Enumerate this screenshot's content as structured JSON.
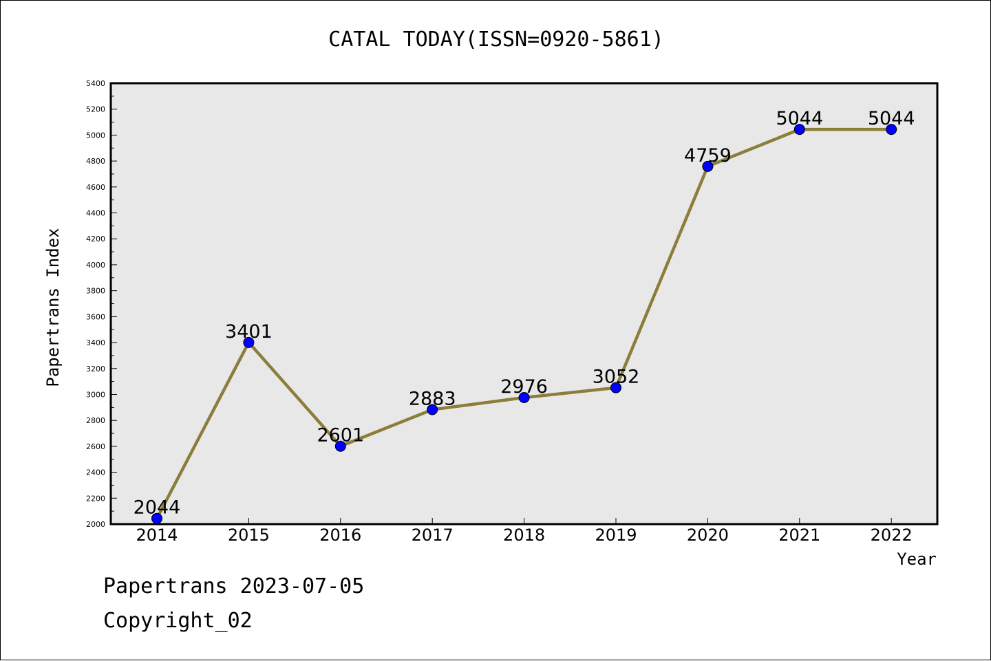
{
  "chart_data": {
    "type": "line",
    "title": "CATAL TODAY(ISSN=0920-5861)",
    "xlabel": "Year",
    "ylabel": "Papertrans Index",
    "categories": [
      "2014",
      "2015",
      "2016",
      "2017",
      "2018",
      "2019",
      "2020",
      "2021",
      "2022"
    ],
    "values": [
      2044,
      3401,
      2601,
      2883,
      2976,
      3052,
      4759,
      5044,
      5044
    ],
    "data_labels": [
      "2044",
      "3401",
      "2601",
      "2883",
      "2976",
      "3052",
      "4759",
      "5044",
      "5044"
    ],
    "ylim": [
      2000,
      5400
    ],
    "yticks": [
      "2000",
      "2200",
      "2400",
      "2600",
      "2800",
      "3000",
      "3200",
      "3400",
      "3600",
      "3800",
      "4000",
      "4200",
      "4400",
      "4600",
      "4800",
      "5000",
      "5200",
      "5400"
    ],
    "grid": false,
    "legend": "none",
    "colors": {
      "line": "#8b7d3a",
      "marker": "#0000ff",
      "plot_background": "#e8e8e8"
    }
  },
  "footer": {
    "line1": "Papertrans 2023-07-05",
    "line2": "Copyright_02"
  }
}
